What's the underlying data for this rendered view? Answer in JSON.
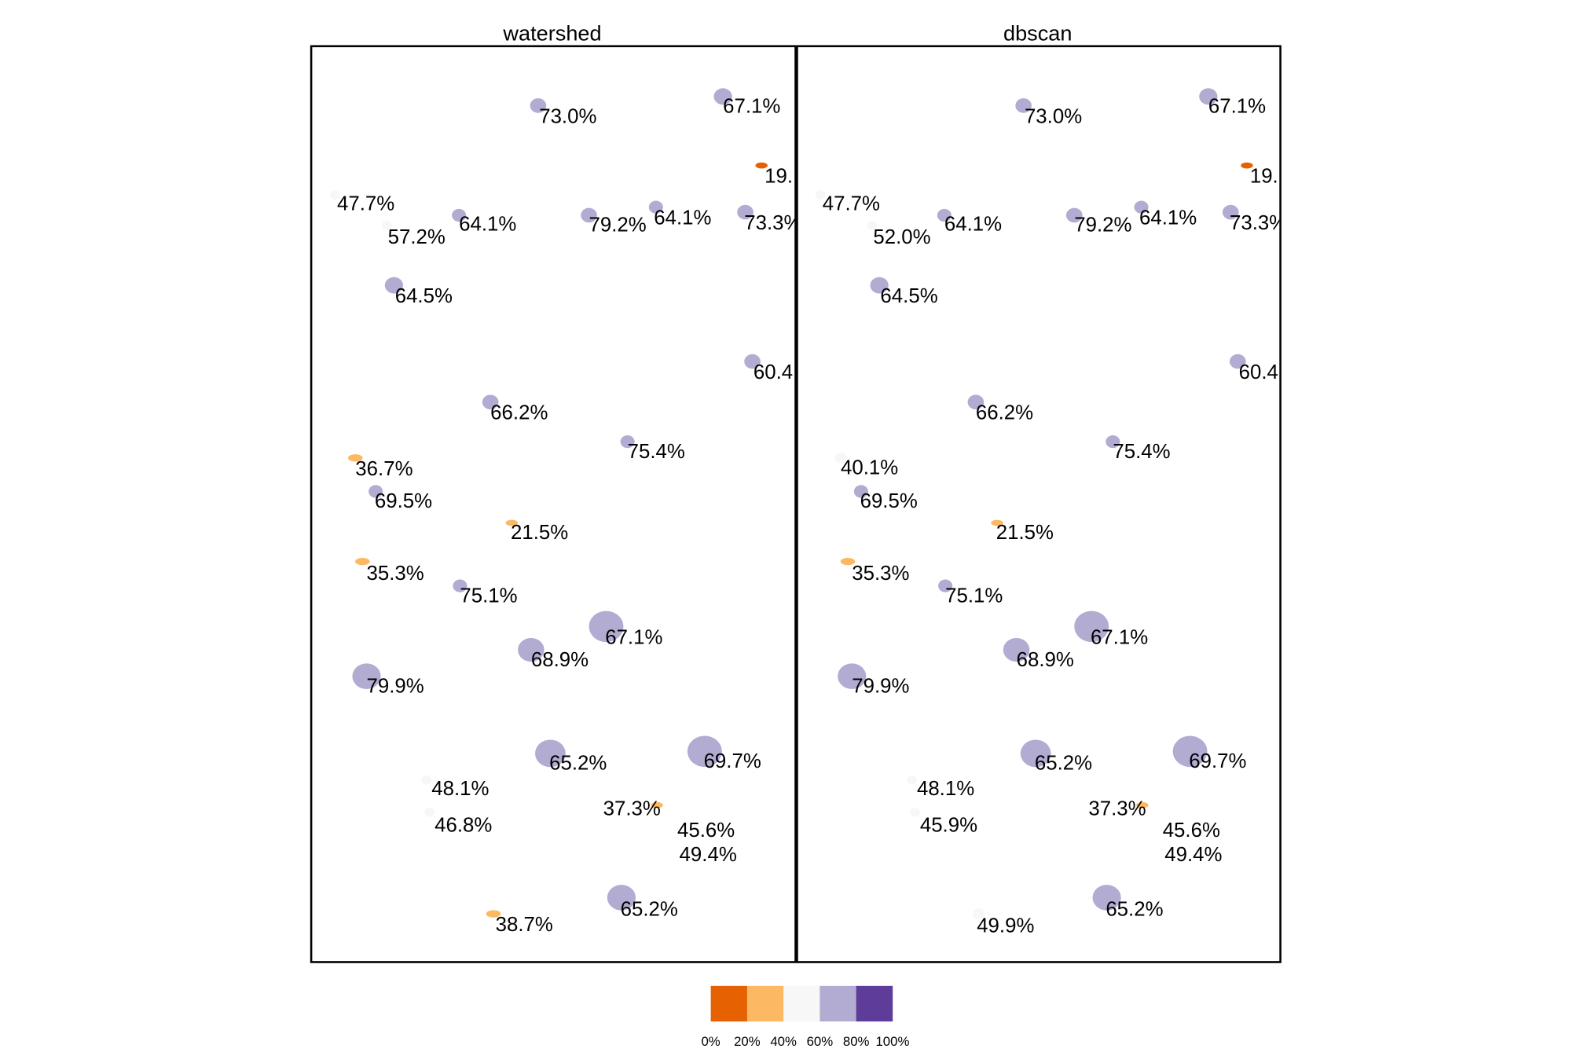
{
  "chart_data": {
    "type": "map",
    "legend": {
      "placement": "bottom",
      "labels": [
        "0%",
        "20%",
        "40%",
        "60%",
        "80%",
        "100%"
      ],
      "colors": [
        "#e66101",
        "#fdb863",
        "#f7f7f7",
        "#b2abd2",
        "#5e3c99"
      ]
    },
    "panels": [
      {
        "title": "watershed",
        "labels": [
          "73.0%",
          "67.1%",
          "19.",
          "47.7%",
          "57.2%",
          "64.1%",
          "79.2%",
          "64.1%",
          "73.3%",
          "64.5%",
          "60.4",
          "66.2%",
          "75.4%",
          "36.7%",
          "69.5%",
          "21.5%",
          "35.3%",
          "75.1%",
          "67.1%",
          "68.9%",
          "79.9%",
          "65.2%",
          "69.7%",
          "48.1%",
          "46.8%",
          "37.3%",
          "45.6%",
          "49.4%",
          "65.2%",
          "38.7%"
        ],
        "values": [
          73.0,
          67.1,
          19.0,
          47.7,
          57.2,
          64.1,
          79.2,
          64.1,
          73.3,
          64.5,
          60.4,
          66.2,
          75.4,
          36.7,
          69.5,
          21.5,
          35.3,
          75.1,
          67.1,
          68.9,
          79.9,
          65.2,
          69.7,
          48.1,
          46.8,
          37.3,
          45.6,
          49.4,
          65.2,
          38.7
        ]
      },
      {
        "title": "dbscan",
        "labels": [
          "73.0%",
          "67.1%",
          "19.",
          "47.7%",
          "52.0%",
          "64.1%",
          "79.2%",
          "64.1%",
          "73.3%",
          "64.5%",
          "60.4",
          "66.2%",
          "75.4%",
          "40.1%",
          "69.5%",
          "21.5%",
          "35.3%",
          "75.1%",
          "67.1%",
          "68.9%",
          "79.9%",
          "65.2%",
          "69.7%",
          "48.1%",
          "45.9%",
          "37.3%",
          "45.6%",
          "49.4%",
          "65.2%",
          "49.9%"
        ],
        "values": [
          73.0,
          67.1,
          19.0,
          47.7,
          52.0,
          64.1,
          79.2,
          64.1,
          73.3,
          64.5,
          60.4,
          66.2,
          75.4,
          40.1,
          69.5,
          21.5,
          35.3,
          75.1,
          67.1,
          68.9,
          79.9,
          65.2,
          69.7,
          48.1,
          45.9,
          37.3,
          45.6,
          49.4,
          65.2,
          49.9
        ]
      }
    ]
  }
}
